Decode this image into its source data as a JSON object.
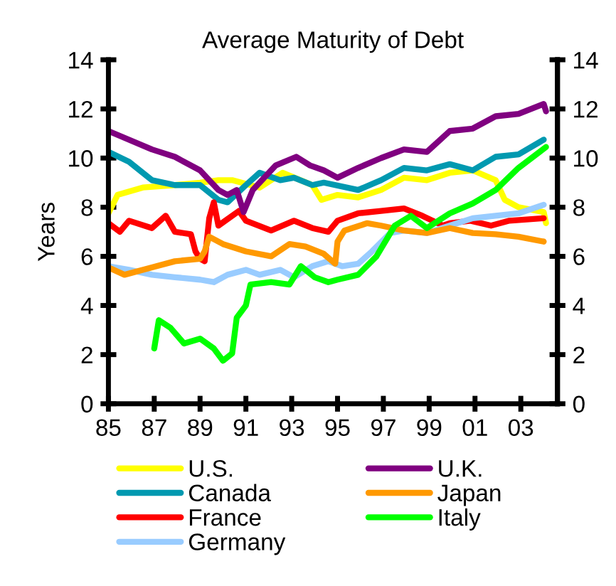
{
  "chart_data": {
    "type": "line",
    "title": "Average Maturity of Debt",
    "ylabel": "Years",
    "xlim": [
      1985,
      2004.6
    ],
    "xticks": [
      {
        "value": 1985,
        "label": "85"
      },
      {
        "value": 1987,
        "label": "87"
      },
      {
        "value": 1989,
        "label": "89"
      },
      {
        "value": 1991,
        "label": "91"
      },
      {
        "value": 1993,
        "label": "93"
      },
      {
        "value": 1995,
        "label": "95"
      },
      {
        "value": 1997,
        "label": "97"
      },
      {
        "value": 1999,
        "label": "99"
      },
      {
        "value": 2001,
        "label": "01"
      },
      {
        "value": 2003,
        "label": "03"
      }
    ],
    "ylim": [
      0,
      14
    ],
    "yticks": [
      0,
      2,
      4,
      6,
      8,
      10,
      12,
      14
    ],
    "y2lim": [
      0,
      14
    ],
    "y2ticks": [
      0,
      2,
      4,
      6,
      8,
      10,
      12,
      14
    ],
    "grid": false,
    "legend": "bottom",
    "marker": "none",
    "line_style": "solid",
    "series": [
      {
        "name": "U.S.",
        "color": "#ffff00",
        "x": [
          1985,
          1985.4,
          1986.5,
          1987.9,
          1989,
          1989.8,
          1990.4,
          1991.6,
          1992.6,
          1993.9,
          1994.3,
          1995,
          1995.9,
          1996.9,
          1997.9,
          1998.9,
          1999.9,
          2000.9,
          2001.9,
          2002.3,
          2002.9,
          2004,
          2004.1
        ],
        "values": [
          7.75,
          8.5,
          8.8,
          8.9,
          9.0,
          9.1,
          9.1,
          8.8,
          9.4,
          8.9,
          8.3,
          8.5,
          8.4,
          8.7,
          9.2,
          9.1,
          9.4,
          9.5,
          9.1,
          8.3,
          8.0,
          7.8,
          7.35
        ]
      },
      {
        "name": "Canada",
        "color": "#0099b0",
        "x": [
          1985,
          1985.9,
          1986.9,
          1987.9,
          1989,
          1989.8,
          1990.2,
          1991,
          1991.6,
          1992.5,
          1993.1,
          1993.9,
          1994.4,
          1995.9,
          1996.9,
          1997.9,
          1998.9,
          1999.9,
          2000.9,
          2001.9,
          2002.9,
          2004
        ],
        "values": [
          10.25,
          9.85,
          9.1,
          8.9,
          8.9,
          8.3,
          8.2,
          8.9,
          9.4,
          9.1,
          9.2,
          8.9,
          9.0,
          8.7,
          9.1,
          9.6,
          9.5,
          9.75,
          9.5,
          10.05,
          10.15,
          10.75
        ]
      },
      {
        "name": "France",
        "color": "#ff0000",
        "x": [
          1985,
          1985.5,
          1985.9,
          1986.9,
          1987.5,
          1987.9,
          1988.6,
          1988.8,
          1989,
          1989.2,
          1989.4,
          1989.6,
          1989.8,
          1990.7,
          1991,
          1992.1,
          1993.1,
          1993.9,
          1994.6,
          1995,
          1995.9,
          1996.9,
          1997.9,
          1998.7,
          1999.6,
          1999.9,
          2000.8,
          2001.7,
          2002.5,
          2004
        ],
        "values": [
          7.35,
          7.0,
          7.45,
          7.15,
          7.65,
          7.0,
          6.9,
          6.2,
          5.9,
          5.8,
          7.55,
          8.2,
          7.25,
          7.85,
          7.45,
          7.05,
          7.45,
          7.15,
          7.0,
          7.45,
          7.75,
          7.85,
          7.95,
          7.65,
          7.25,
          7.35,
          7.45,
          7.25,
          7.45,
          7.55
        ]
      },
      {
        "name": "Germany",
        "color": "#99ccff",
        "x": [
          1985,
          1985.9,
          1986.9,
          1987.9,
          1989,
          1989.6,
          1990.2,
          1991,
          1991.6,
          1992.5,
          1993.1,
          1993.9,
          1994.6,
          1995.2,
          1995.9,
          1996.5,
          1997.3,
          1997.9,
          1998.9,
          1999.9,
          2000.9,
          2001.9,
          2002.9,
          2004
        ],
        "values": [
          5.6,
          5.45,
          5.25,
          5.15,
          5.05,
          4.95,
          5.25,
          5.45,
          5.25,
          5.45,
          5.15,
          5.6,
          5.8,
          5.6,
          5.7,
          6.2,
          6.95,
          7.05,
          6.95,
          7.25,
          7.55,
          7.65,
          7.75,
          8.1
        ]
      },
      {
        "name": "U.K.",
        "color": "#800080",
        "x": [
          1985,
          1986.9,
          1987.9,
          1989,
          1989.8,
          1990.2,
          1990.6,
          1990.9,
          1991.3,
          1992.3,
          1993.2,
          1993.8,
          1994.4,
          1995,
          1995.9,
          1996.9,
          1997.9,
          1998.9,
          1999.9,
          2000.9,
          2001.9,
          2002.9,
          2004,
          2004.1
        ],
        "values": [
          11.1,
          10.35,
          10.05,
          9.5,
          8.7,
          8.5,
          8.7,
          7.8,
          8.7,
          9.7,
          10.05,
          9.7,
          9.5,
          9.2,
          9.6,
          10.0,
          10.35,
          10.25,
          11.1,
          11.2,
          11.7,
          11.8,
          12.2,
          11.9
        ]
      },
      {
        "name": "Japan",
        "color": "#ff9900",
        "x": [
          1985,
          1985.7,
          1986.9,
          1987.9,
          1989,
          1989.2,
          1989.4,
          1990,
          1991,
          1992.1,
          1992.9,
          1993.6,
          1994.4,
          1994.9,
          1995,
          1995.3,
          1996.3,
          1996.9,
          1997.9,
          1998.9,
          1999.9,
          2000.9,
          2001.9,
          2002.9,
          2004
        ],
        "values": [
          5.55,
          5.25,
          5.55,
          5.8,
          5.9,
          6.2,
          6.8,
          6.5,
          6.2,
          6.0,
          6.5,
          6.4,
          6.1,
          5.7,
          6.6,
          7.05,
          7.35,
          7.25,
          7.05,
          6.95,
          7.15,
          6.95,
          6.9,
          6.8,
          6.6
        ]
      },
      {
        "name": "Italy",
        "color": "#00ff00",
        "x": [
          1987,
          1987.2,
          1987.7,
          1988.3,
          1989,
          1989.6,
          1990,
          1990.4,
          1990.6,
          1991,
          1991.2,
          1992.1,
          1992.9,
          1993.4,
          1994,
          1994.6,
          1995,
          1995.9,
          1996.7,
          1997.5,
          1998.2,
          1998.9,
          1999.9,
          2000.9,
          2001.9,
          2002.9,
          2004.1
        ],
        "values": [
          2.25,
          3.4,
          3.1,
          2.45,
          2.65,
          2.25,
          1.75,
          2.05,
          3.5,
          4.0,
          4.85,
          4.95,
          4.85,
          5.6,
          5.15,
          4.95,
          5.05,
          5.25,
          6.0,
          7.25,
          7.65,
          7.15,
          7.75,
          8.15,
          8.7,
          9.6,
          10.45
        ]
      }
    ]
  }
}
